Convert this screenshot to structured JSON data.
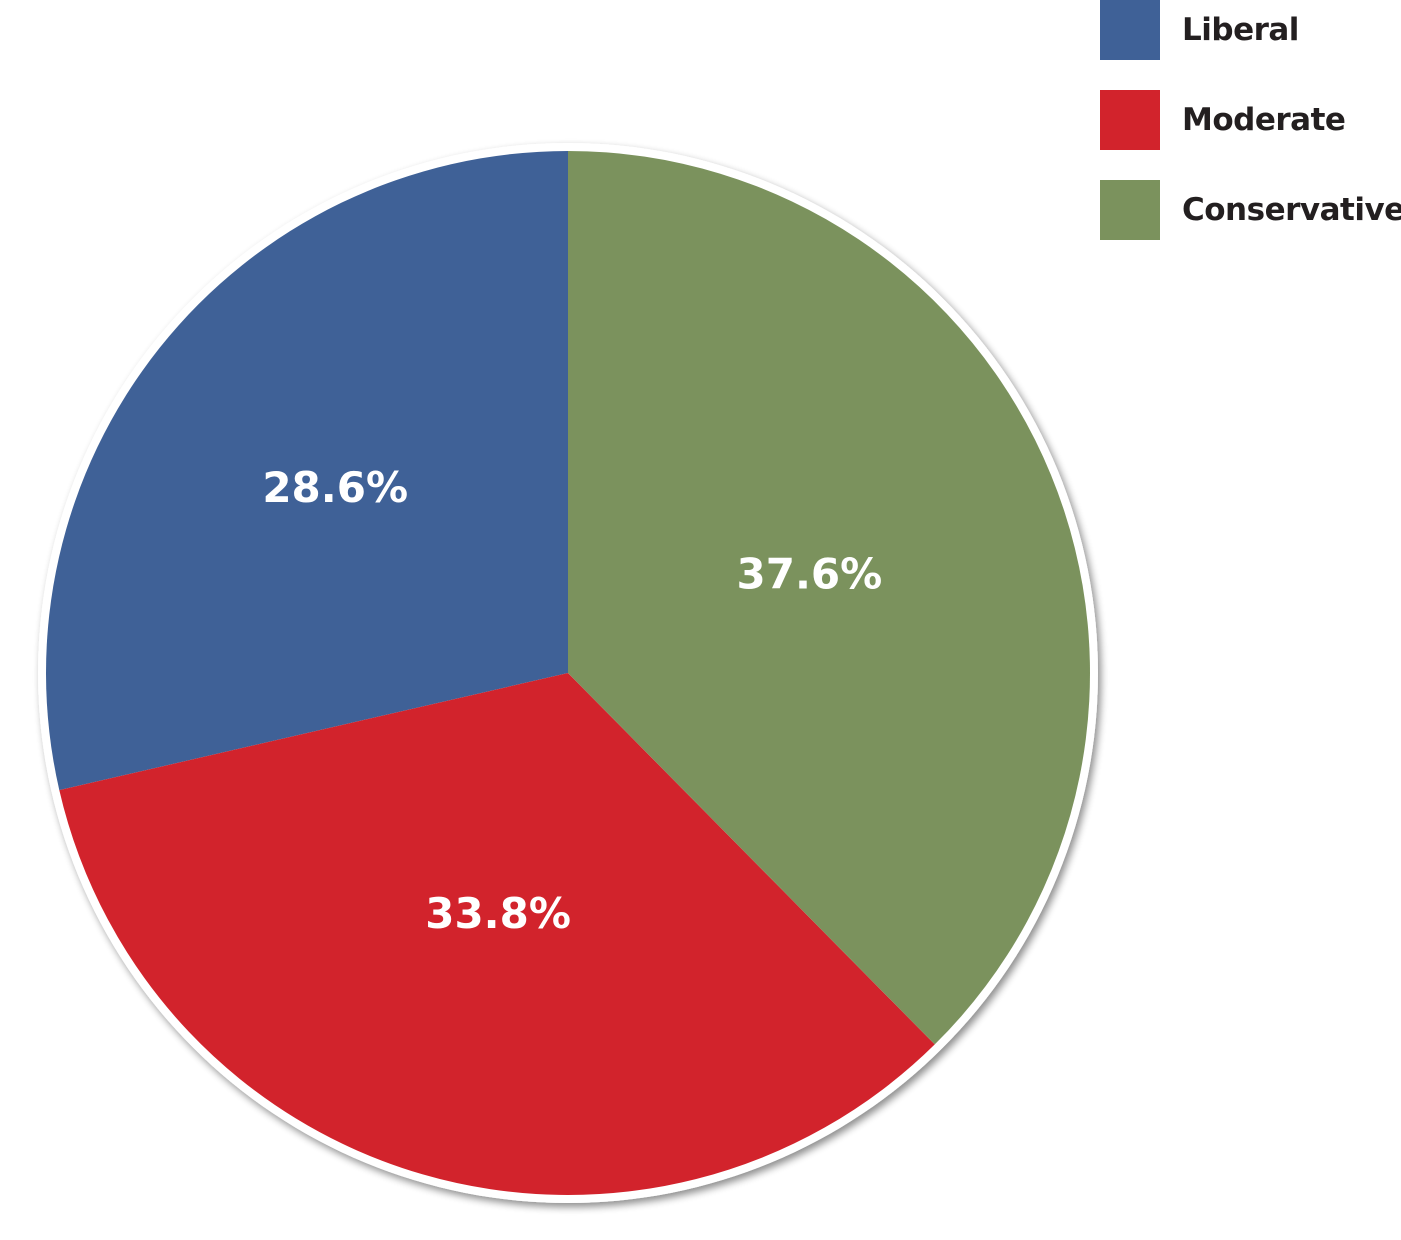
{
  "chart_data": {
    "type": "pie",
    "title": "",
    "series": [
      {
        "name": "Liberal",
        "value": 28.6,
        "label": "28.6%",
        "color": "#3f6197"
      },
      {
        "name": "Moderate",
        "value": 33.8,
        "label": "33.8%",
        "color": "#d2232c"
      },
      {
        "name": "Conservative",
        "value": 37.6,
        "label": "37.6%",
        "color": "#7b925d"
      }
    ],
    "legend": {
      "placement": "top-right",
      "entries": [
        "Liberal",
        "Moderate",
        "Conservative"
      ]
    },
    "start": "12 o'clock",
    "order": "counter-clockwise from top: Liberal, Moderate, Conservative"
  }
}
